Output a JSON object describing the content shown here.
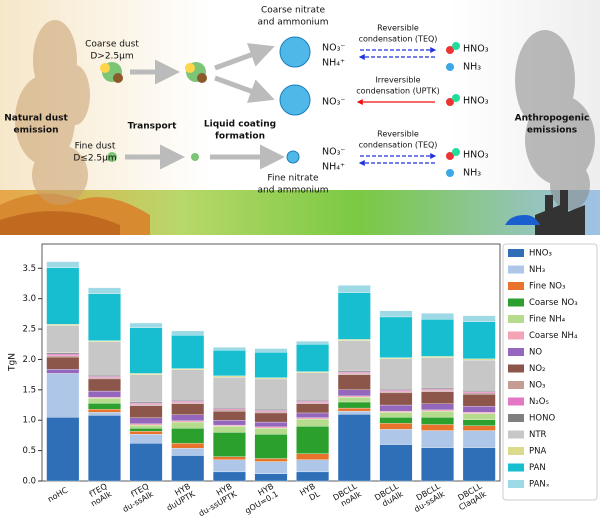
{
  "diagram": {
    "labels": [
      "Coarse dust",
      "D>2.5μm",
      "Fine dust",
      "D≤2.5μm",
      "Natural dust",
      "emission",
      "Transport",
      "Liquid coating",
      "formation",
      "Coarse nitrate",
      "and ammonium",
      "Fine nitrate",
      "and ammonium",
      "NO₃⁻",
      "NH₄⁺",
      "NO₃⁻",
      "NO₃⁻",
      "NH₄⁺",
      "Reversible",
      "condensation (TEQ)",
      "Irreversible",
      "condensation (UPTK)",
      "Reversible",
      "condensation (TEQ)",
      "HNO₃",
      "NH₃",
      "HNO₃",
      "HNO₃",
      "NH₃",
      "Anthropogenic",
      "emissions"
    ]
  },
  "chart_data": {
    "type": "stacked_bar",
    "ylabel": "TgN",
    "categories": [
      [
        "noHC"
      ],
      [
        "fTEQ",
        "noAlk"
      ],
      [
        "fTEQ",
        "du-ssAlk"
      ],
      [
        "HYB",
        "duUPTK"
      ],
      [
        "HYB",
        "du-ssUPTK"
      ],
      [
        "HYB",
        "gOU=0.1"
      ],
      [
        "HYB",
        "DL"
      ],
      [
        "DBCLL",
        "noAlk"
      ],
      [
        "DBCLL",
        "duAlk"
      ],
      [
        "DBCLL",
        "du-ssAlk"
      ],
      [
        "DBCLL",
        "ClaqAlk"
      ]
    ],
    "ylim": [
      0,
      3.9
    ],
    "yticks": [
      {
        "value": 0,
        "label": "0.0"
      },
      0.5,
      {
        "value": 1,
        "label": "1.0"
      },
      1.5,
      {
        "value": 2,
        "label": "2.0"
      },
      2.5,
      {
        "value": 3,
        "label": "3.0"
      },
      3.5
    ],
    "legend": "right",
    "series": [
      {
        "name": "HNO₃",
        "color": "#2e6fb7",
        "values": [
          1.05,
          1.08,
          0.62,
          0.42,
          0.15,
          0.12,
          0.15,
          1.1,
          0.6,
          0.55,
          0.55
        ]
      },
      {
        "name": "NH₃",
        "color": "#aec7e8",
        "values": [
          0.72,
          0.05,
          0.15,
          0.12,
          0.2,
          0.2,
          0.2,
          0.05,
          0.25,
          0.28,
          0.28
        ]
      },
      {
        "name": "Fine NO₃",
        "color": "#e8742c",
        "values": [
          0,
          0.05,
          0.05,
          0.08,
          0.05,
          0.05,
          0.1,
          0.05,
          0.1,
          0.1,
          0.08
        ]
      },
      {
        "name": "Coarse NO₃",
        "color": "#2ca02c",
        "values": [
          0,
          0.1,
          0.05,
          0.25,
          0.4,
          0.4,
          0.45,
          0.1,
          0.1,
          0.12,
          0.1
        ]
      },
      {
        "name": "Fine NH₄",
        "color": "#b5db8c",
        "values": [
          0,
          0.08,
          0.05,
          0.1,
          0.1,
          0.1,
          0.12,
          0.08,
          0.08,
          0.1,
          0.1
        ]
      },
      {
        "name": "Coarse NH₄",
        "color": "#f4a3b4",
        "values": [
          0,
          0.02,
          0.02,
          0.02,
          0.02,
          0.02,
          0.02,
          0.02,
          0.02,
          0.02,
          0.02
        ]
      },
      {
        "name": "NO",
        "color": "#9467bd",
        "values": [
          0.07,
          0.1,
          0.1,
          0.1,
          0.08,
          0.08,
          0.08,
          0.1,
          0.1,
          0.1,
          0.1
        ]
      },
      {
        "name": "NO₂",
        "color": "#8c564b",
        "values": [
          0.2,
          0.2,
          0.2,
          0.18,
          0.15,
          0.15,
          0.15,
          0.25,
          0.2,
          0.2,
          0.2
        ]
      },
      {
        "name": "NO₃",
        "color": "#c49c94",
        "values": [
          0.02,
          0.02,
          0.02,
          0.02,
          0.02,
          0.02,
          0.02,
          0.02,
          0.02,
          0.02,
          0.02
        ]
      },
      {
        "name": "N₂O₅",
        "color": "#e377c2",
        "values": [
          0.03,
          0.02,
          0.02,
          0.02,
          0.02,
          0.02,
          0.02,
          0.02,
          0.02,
          0.02,
          0.02
        ]
      },
      {
        "name": "HONO",
        "color": "#7f7f7f",
        "values": [
          0.02,
          0.02,
          0.02,
          0.02,
          0.02,
          0.02,
          0.02,
          0.02,
          0.02,
          0.02,
          0.02
        ]
      },
      {
        "name": "NTR",
        "color": "#c7c7c7",
        "values": [
          0.45,
          0.55,
          0.45,
          0.5,
          0.5,
          0.5,
          0.45,
          0.5,
          0.5,
          0.5,
          0.5
        ]
      },
      {
        "name": "PNA",
        "color": "#dbdb8d",
        "values": [
          0.02,
          0.02,
          0.02,
          0.02,
          0.02,
          0.02,
          0.02,
          0.02,
          0.02,
          0.02,
          0.02
        ]
      },
      {
        "name": "PAN",
        "color": "#17becf",
        "values": [
          0.93,
          0.77,
          0.75,
          0.55,
          0.42,
          0.42,
          0.45,
          0.77,
          0.67,
          0.61,
          0.61
        ]
      },
      {
        "name": "PANₓ",
        "color": "#9edae5",
        "values": [
          0.1,
          0.1,
          0.08,
          0.07,
          0.05,
          0.06,
          0.05,
          0.12,
          0.1,
          0.1,
          0.1
        ]
      }
    ]
  }
}
